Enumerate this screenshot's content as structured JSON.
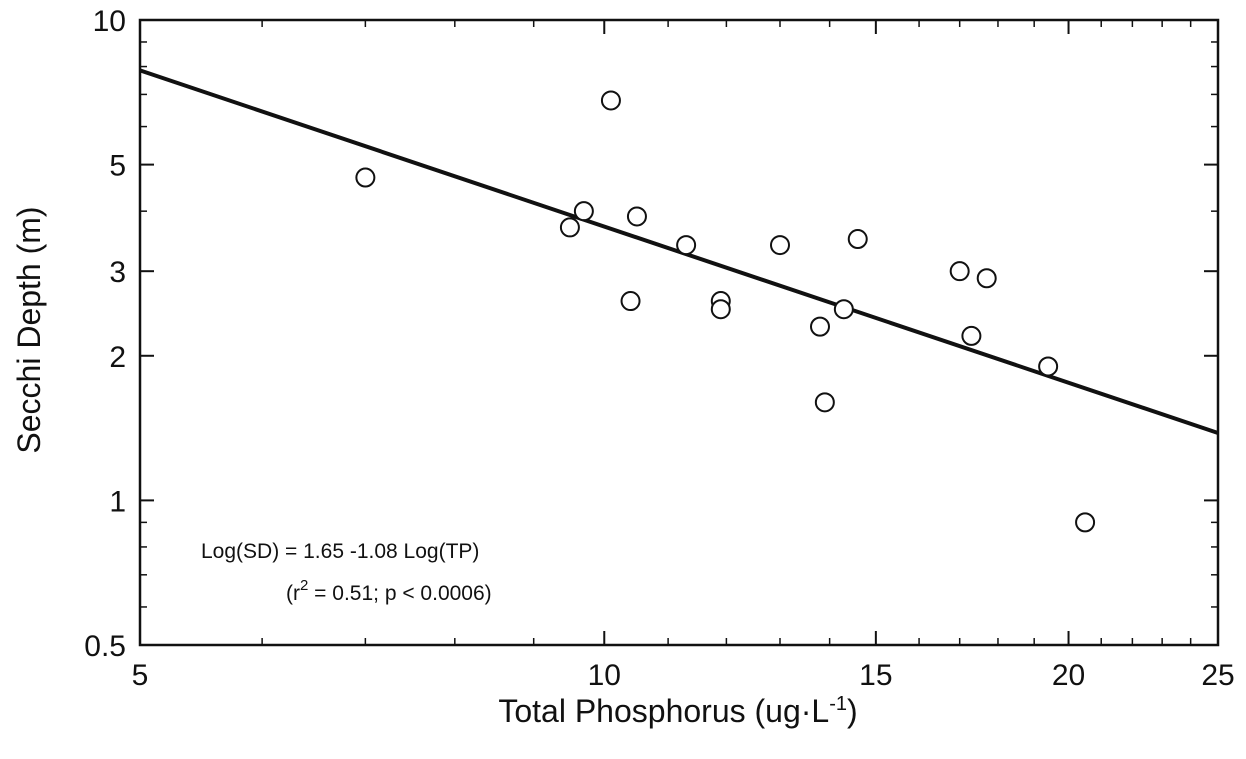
{
  "chart_data": {
    "type": "scatter",
    "xlabel": "Total Phosphorus (ug·L",
    "xlabel_superscript": "-1",
    "xlabel_suffix": ")",
    "ylabel": "Secchi Depth (m)",
    "x_scale": "log",
    "y_scale": "log",
    "xlim": [
      5,
      25
    ],
    "ylim": [
      0.5,
      10
    ],
    "x_ticks": [
      5,
      10,
      15,
      20,
      25
    ],
    "y_ticks": [
      0.5,
      1,
      2,
      3,
      5,
      10
    ],
    "x_tick_labels": [
      "5",
      "10",
      "15",
      "20",
      "25"
    ],
    "y_tick_labels": [
      "0.5",
      "1",
      "2",
      "3",
      "5",
      "10"
    ],
    "x_minor_ticks": [
      6,
      7,
      8,
      9,
      11,
      12,
      13,
      14,
      16,
      17,
      18,
      19,
      21,
      22,
      23,
      24
    ],
    "y_minor_ticks": [
      0.6,
      0.7,
      0.8,
      0.9,
      4,
      6,
      7,
      8,
      9
    ],
    "grid": false,
    "legend": "none",
    "colors": {
      "ink": "#111111",
      "marker_fill": "#ffffff"
    },
    "points": [
      {
        "x": 7.0,
        "y": 4.7
      },
      {
        "x": 9.5,
        "y": 3.7
      },
      {
        "x": 9.7,
        "y": 4.0
      },
      {
        "x": 10.1,
        "y": 6.8
      },
      {
        "x": 10.4,
        "y": 2.6
      },
      {
        "x": 10.5,
        "y": 3.9
      },
      {
        "x": 11.3,
        "y": 3.4
      },
      {
        "x": 11.9,
        "y": 2.6
      },
      {
        "x": 11.9,
        "y": 2.5
      },
      {
        "x": 13.0,
        "y": 3.4
      },
      {
        "x": 13.8,
        "y": 2.3
      },
      {
        "x": 13.9,
        "y": 1.6
      },
      {
        "x": 14.3,
        "y": 2.5
      },
      {
        "x": 14.6,
        "y": 3.5
      },
      {
        "x": 17.0,
        "y": 3.0
      },
      {
        "x": 17.3,
        "y": 2.2
      },
      {
        "x": 17.7,
        "y": 2.9
      },
      {
        "x": 19.4,
        "y": 1.9
      },
      {
        "x": 20.5,
        "y": 0.9
      }
    ],
    "regression": {
      "intercept": 1.65,
      "slope": -1.08,
      "x_range": [
        5,
        25
      ]
    },
    "annotation": {
      "line1": "Log(SD) = 1.65 -1.08 Log(TP)",
      "line2_prefix": "(r",
      "line2_sup": "2",
      "line2_suffix": " = 0.51;  p < 0.0006)"
    }
  }
}
